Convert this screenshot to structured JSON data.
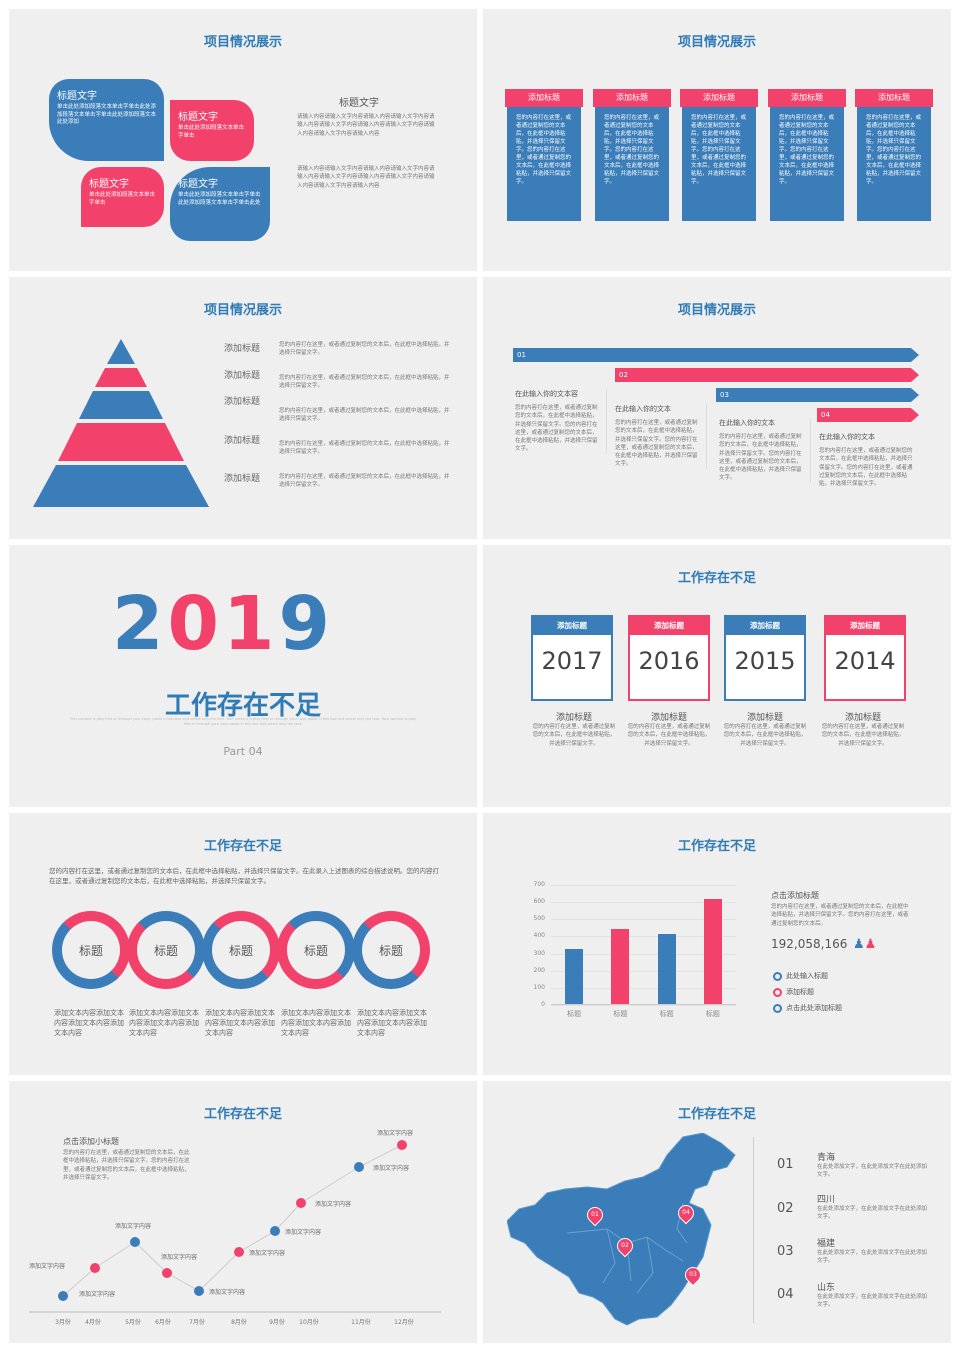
{
  "slide1": {
    "title": "项目情况展示",
    "petals": [
      {
        "title": "标题文字",
        "text": "单击此处添加段落文本单击字单击此处添加段落文本单击字单击此处添加段落文本此处添加"
      },
      {
        "title": "标题文字",
        "text": "单击此处添加段落文本单击字单击"
      },
      {
        "title": "标题文字",
        "text": "单击此处添加段落文本单击字单击"
      },
      {
        "title": "标题文字",
        "text": "单击此处添加段落文本单击字单击此处添加段落文本单击字单击此处"
      }
    ],
    "side_title": "标题文字",
    "side_text1": "请输入内容请输入文字内容请输入内容请输入文字内容请输入内容请输入文字内容请输入内容请输入文字内容请输入内容请输入文字内容请输入内容",
    "side_text2": "请输入内容请输入文字内容请输入内容请输入文字内容请输入内容请输入文字内容请输入内容请输入文字内容请输入内容请输入文字内容请输入内容"
  },
  "slide2": {
    "title": "项目情况展示",
    "columns": [
      {
        "header": "添加标题",
        "text": "您的内容打在这里，或者通过复制您的文本后，在此框中选择粘贴，并选择只保留文字。您的内容打在这里，或者通过复制您的文本后，在此框中选择粘贴，并选择只保留文字。"
      },
      {
        "header": "添加标题",
        "text": "您的内容打在这里，或者通过复制您的文本后，在此框中选择粘贴，并选择只保留文字。您的内容打在这里，或者通过复制您的文本后，在此框中选择粘贴，并选择只保留文字。"
      },
      {
        "header": "添加标题",
        "text": "您的内容打在这里，或者通过复制您的文本后，在此框中选择粘贴，并选择只保留文字。您的内容打在这里，或者通过复制您的文本后，在此框中选择粘贴，并选择只保留文字。"
      },
      {
        "header": "添加标题",
        "text": "您的内容打在这里，或者通过复制您的文本后，在此框中选择粘贴，并选择只保留文字。您的内容打在这里，或者通过复制您的文本后，在此框中选择粘贴，并选择只保留文字。"
      },
      {
        "header": "添加标题",
        "text": "您的内容打在这里，或者通过复制您的文本后，在此框中选择粘贴，并选择只保留文字。您的内容打在这里，或者通过复制您的文本后，在此框中选择粘贴，并选择只保留文字。"
      }
    ]
  },
  "slide3": {
    "title": "项目情况展示",
    "items": [
      {
        "label": "添加标题",
        "text": "您的内容打在这里，或者通过复制您的文本后，在此框中选择粘贴，并选择只保留文字。"
      },
      {
        "label": "添加标题",
        "text": "您的内容打在这里，或者通过复制您的文本后，在此框中选择粘贴，并选择只保留文字。"
      },
      {
        "label": "添加标题",
        "text": "您的内容打在这里，或者通过复制您的文本后，在此框中选择粘贴，并选择只保留文字。"
      },
      {
        "label": "添加标题",
        "text": "您的内容打在这里，或者通过复制您的文本后，在此框中选择粘贴，并选择只保留文字。"
      },
      {
        "label": "添加标题",
        "text": "您的内容打在这里，或者通过复制您的文本后，在此框中选择粘贴，并选择只保留文字。"
      }
    ]
  },
  "slide4": {
    "title": "项目情况展示",
    "arrows": [
      "01",
      "02",
      "03",
      "04"
    ],
    "blocks": [
      {
        "title": "在此输入你的文本容",
        "text": "您的内容打在这里，或者通过复制您的文本后，在此框中选择粘贴，并选择只保留文字。您的内容打在这里，或者通过复制您的文本后，在此框中选择粘贴，并选择只保留文字。"
      },
      {
        "title": "在此输入你的文本",
        "text": "您的内容打在这里，或者通过复制您的文本后，在此框中选择粘贴，并选择只保留文字。您的内容打在这里，或者通过复制您的文本后，在此框中选择粘贴，并选择只保留文字。"
      },
      {
        "title": "在此输入你的文本",
        "text": "您的内容打在这里，或者通过复制您的文本后，在此框中选择粘贴，并选择只保留文字。您的内容打在这里，或者通过复制您的文本后，在此框中选择粘贴，并选择只保留文字。"
      },
      {
        "title": "在此输入你的文本",
        "text": "您的内容打在这里，或者通过复制您的文本后，在此框中选择粘贴，并选择只保留文字。您的内容打在这里，或者通过复制您的文本后，在此框中选择粘贴，并选择只保留文字。"
      }
    ]
  },
  "slide5": {
    "year": "2019",
    "title": "工作存在不足",
    "subtitle": "This content is play free or through your copy, paste in this box and select only the text. Your content is play free or through your copy paste in this box and select only the text. Your content is play free or through your copy paste in this box and select only the text.",
    "part": "Part 04"
  },
  "slide6": {
    "title": "工作存在不足",
    "cards": [
      {
        "header": "添加标题",
        "year": "2017",
        "label": "添加标题",
        "text": "您的内容打在这里，或者通过复制您的文本后，在此框中选择粘贴，并选择只保留文字。",
        "color": "#3a7db8"
      },
      {
        "header": "添加标题",
        "year": "2016",
        "label": "添加标题",
        "text": "您的内容打在这里，或者通过复制您的文本后，在此框中选择粘贴，并选择只保留文字。",
        "color": "#f2416b"
      },
      {
        "header": "添加标题",
        "year": "2015",
        "label": "添加标题",
        "text": "您的内容打在这里，或者通过复制您的文本后，在此框中选择粘贴，并选择只保留文字。",
        "color": "#3a7db8"
      },
      {
        "header": "添加标题",
        "year": "2014",
        "label": "添加标题",
        "text": "您的内容打在这里，或者通过复制您的文本后，在此框中选择粘贴，并选择只保留文字。",
        "color": "#f2416b"
      }
    ]
  },
  "slide7": {
    "title": "工作存在不足",
    "intro": "您的内容打在这里，或者通过复制您的文本后，在此框中选择粘贴，并选择只保留文字。在此录入上述图表的综合描述说明。您的内容打在这里，或者通过复制您的文本后，在此框中选择粘贴，并选择只保留文字。",
    "rings": [
      {
        "label": "标题",
        "text": "添加文本内容添加文本内容添加文本内容添加文本内容"
      },
      {
        "label": "标题",
        "text": "添加文本内容添加文本内容添加文本内容添加文本内容"
      },
      {
        "label": "标题",
        "text": "添加文本内容添加文本内容添加文本内容添加文本内容"
      },
      {
        "label": "标题",
        "text": "添加文本内容添加文本内容添加文本内容添加文本内容"
      },
      {
        "label": "标题",
        "text": "添加文本内容添加文本内容添加文本内容添加文本内容"
      }
    ]
  },
  "slide8": {
    "title": "工作存在不足",
    "info_title": "点击添加标题",
    "info_text": "您的内容打在这里，或者通过复制您的文本后，在此框中选择粘贴，并选择只保留文字。您的内容打在这里，或者通过复制您的文本后。",
    "number": "192,058,166",
    "legend": [
      {
        "label": "此处输入标题",
        "color": "#3a7db8"
      },
      {
        "label": "添加标题",
        "color": "#f2416b"
      },
      {
        "label": "点击此处添加标题",
        "color": "#3a7db8"
      }
    ],
    "chart_data": {
      "type": "bar",
      "categories": [
        "标题",
        "标题",
        "标题",
        "标题"
      ],
      "values": [
        320,
        440,
        410,
        610
      ],
      "colors": [
        "#3a7db8",
        "#f2416b",
        "#3a7db8",
        "#f2416b"
      ],
      "ylim": [
        0,
        700
      ],
      "yticks": [
        "700",
        "600",
        "500",
        "400",
        "300",
        "200",
        "100",
        "0"
      ]
    }
  },
  "slide9": {
    "title": "工作存在不足",
    "info_title": "点击添加小标题",
    "info_text": "您的内容打在这里，或者通过复制您的文本后，在此框中选择粘贴，并选择只保留文字。您的内容打在这里，或者通过复制您的文本后，在此框中选择粘贴，并选择只保留文字。",
    "months": [
      "3月份",
      "4月份",
      "5月份",
      "6月份",
      "7月份",
      "8月份",
      "9月份",
      "10月份",
      "11月份",
      "12月份"
    ],
    "point_label": "添加文字内容"
  },
  "slide10": {
    "title": "工作存在不足",
    "markers": [
      "01",
      "02",
      "03",
      "04"
    ],
    "entries": [
      {
        "num": "01",
        "name": "青海",
        "text": "在此处添加文字，在此处添加文字在此处添加文字。"
      },
      {
        "num": "02",
        "name": "四川",
        "text": "在此处添加文字，在此处添加文字在此处添加文字。"
      },
      {
        "num": "03",
        "name": "福建",
        "text": "在此处添加文字，在此处添加文字在此处添加文字。"
      },
      {
        "num": "04",
        "name": "山东",
        "text": "在此处添加文字，在此处添加文字在此处添加文字。"
      }
    ]
  }
}
